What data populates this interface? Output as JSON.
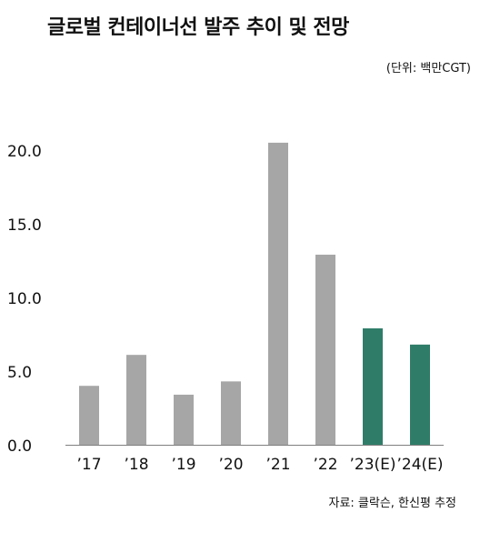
{
  "title": "글로벌 컨테이너선 발주 추이 및 전망",
  "unit_label": "(단위: 백만CGT)",
  "source_label": "자료: 클락슨, 한신평 추정",
  "colors": {
    "actual": "#a6a6a6",
    "estimate": "#2f7d69",
    "axis": "#7f7f7f",
    "text": "#111111"
  },
  "chart_data": {
    "type": "bar",
    "title": "글로벌 컨테이너선 발주 추이 및 전망",
    "xlabel": "",
    "ylabel": "",
    "unit": "(단위: 백만CGT)",
    "categories": [
      "’17",
      "’18",
      "’19",
      "’20",
      "’21",
      "’22",
      "’23(E)",
      "’24(E)"
    ],
    "values": [
      4.0,
      6.1,
      3.4,
      4.3,
      20.5,
      12.9,
      7.9,
      6.8
    ],
    "estimate": [
      false,
      false,
      false,
      false,
      false,
      false,
      true,
      true
    ],
    "ylim": [
      0,
      22
    ],
    "yticks": [
      0.0,
      5.0,
      10.0,
      15.0,
      20.0
    ],
    "ytick_labels": [
      "0.0",
      "5.0",
      "10.0",
      "15.0",
      "20.0"
    ],
    "grid": false,
    "legend": "none"
  }
}
